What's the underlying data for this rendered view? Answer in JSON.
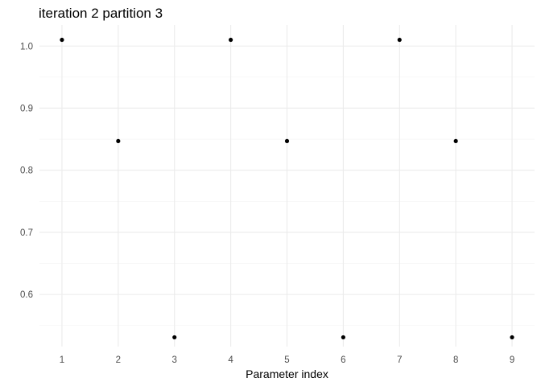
{
  "chart_data": {
    "type": "scatter",
    "title": "iteration 2 partition 3",
    "xlabel": "Parameter index",
    "ylabel": "",
    "x": [
      1,
      2,
      3,
      4,
      5,
      6,
      7,
      8,
      9
    ],
    "y": [
      1.01,
      0.847,
      0.531,
      1.01,
      0.847,
      0.531,
      1.01,
      0.847,
      0.531
    ],
    "xlim": [
      0.6,
      9.4
    ],
    "ylim": [
      0.516,
      1.034
    ],
    "x_ticks": [
      1,
      2,
      3,
      4,
      5,
      6,
      7,
      8,
      9
    ],
    "y_ticks": [
      0.6,
      0.7,
      0.8,
      0.9,
      1.0
    ],
    "y_tick_labels": [
      "0.6",
      "0.7",
      "0.8",
      "0.9",
      "1.0"
    ],
    "y_minor_ticks": [
      0.55,
      0.65,
      0.75,
      0.85,
      0.95
    ],
    "grid": true,
    "point_color": "#000000",
    "grid_color": "#ebebeb"
  }
}
